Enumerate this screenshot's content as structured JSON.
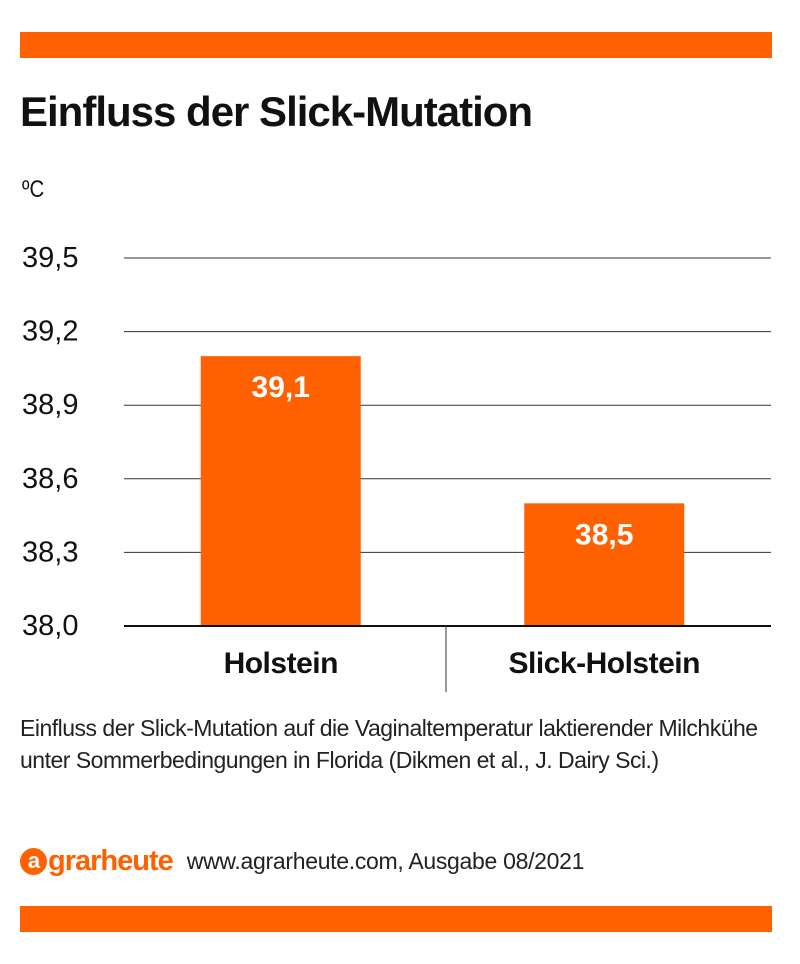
{
  "brand": {
    "accent_color": "#ff6100",
    "logo_icon_letter": "a",
    "logo_text": "grarheute",
    "source_text": "www.agrarheute.com, Ausgabe 08/2021"
  },
  "caption": "Einfluss der Slick-Mutation auf die Vaginaltemperatur laktierender Milchkühe unter Sommerbedingungen in Florida (Dikmen et al., J. Dairy Sci.)",
  "chart_data": {
    "type": "bar",
    "title": "Einfluss der Slick-Mutation",
    "ylabel": "ºC",
    "xlabel": "",
    "categories": [
      "Holstein",
      "Slick-Holstein"
    ],
    "values": [
      39.1,
      38.5
    ],
    "data_labels": [
      "39,1",
      "38,5"
    ],
    "yticks": [
      "38,0",
      "38,3",
      "38,6",
      "38,9",
      "39,2",
      "39,5"
    ],
    "ytick_values": [
      38.0,
      38.3,
      38.6,
      38.9,
      39.2,
      39.5
    ],
    "ylim": [
      38.0,
      39.5
    ],
    "grid": true,
    "bar_color": "#ff6100",
    "label_color": "#ffffff"
  }
}
